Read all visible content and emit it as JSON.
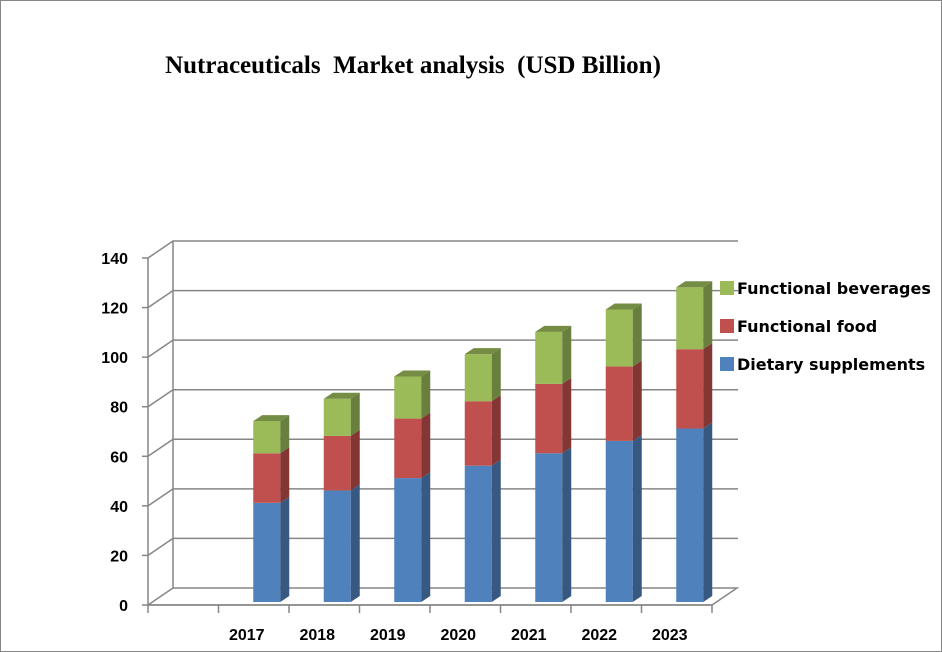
{
  "chart_data": {
    "type": "bar",
    "stacked": true,
    "three_d": true,
    "title": "Nutraceuticals  Market analysis  (USD Billion)",
    "categories": [
      "2017",
      "2018",
      "2019",
      "2020",
      "2021",
      "2022",
      "2023"
    ],
    "series": [
      {
        "name": "Dietary supplements",
        "color": "#4f81bd",
        "values": [
          40,
          45,
          50,
          55,
          60,
          65,
          70
        ]
      },
      {
        "name": "Functional food",
        "color": "#c0504d",
        "values": [
          20,
          22,
          24,
          26,
          28,
          30,
          32
        ]
      },
      {
        "name": "Functional beverages",
        "color": "#9bbb59",
        "values": [
          13,
          15,
          17,
          19,
          21,
          23,
          25
        ]
      }
    ],
    "ylim": [
      0,
      140
    ],
    "yticks": [
      "0",
      "20",
      "40",
      "60",
      "80",
      "100",
      "120",
      "140"
    ],
    "grid": true,
    "legend_position": "right"
  }
}
